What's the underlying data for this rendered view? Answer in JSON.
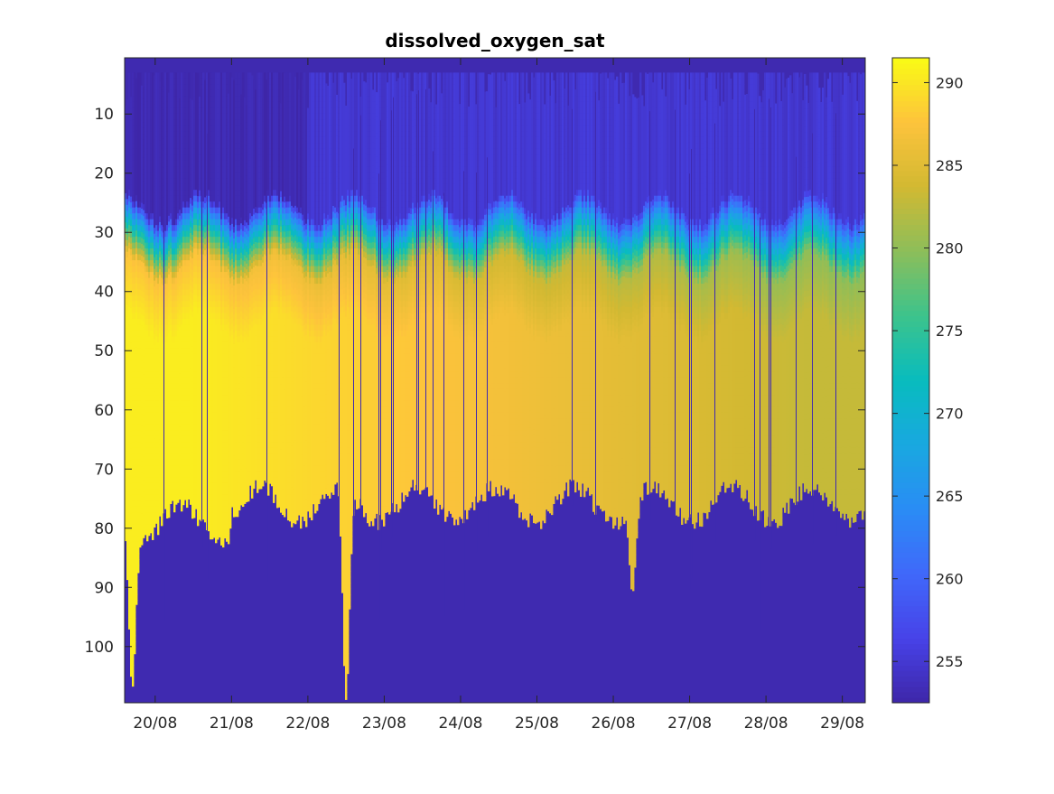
{
  "chart_data": {
    "type": "heatmap",
    "title": "dissolved_oxygen_sat",
    "xlabel": "",
    "ylabel": "",
    "x_ticks": [
      "20/08",
      "21/08",
      "22/08",
      "23/08",
      "24/08",
      "25/08",
      "26/08",
      "27/08",
      "28/08",
      "29/08"
    ],
    "x_tick_days": [
      20,
      21,
      22,
      23,
      24,
      25,
      26,
      27,
      28,
      29
    ],
    "xlim_days": [
      19.6,
      29.3
    ],
    "y_ticks": [
      10,
      20,
      30,
      40,
      50,
      60,
      70,
      80,
      90,
      100
    ],
    "ylim": [
      0.5,
      109.5
    ],
    "y_reversed": true,
    "colorbar": {
      "colormap": "parula",
      "range": [
        252.5,
        291.5
      ],
      "ticks": [
        255,
        260,
        265,
        270,
        275,
        280,
        285,
        290
      ]
    },
    "series_profile": {
      "surface_value": 256,
      "surface_layer_bottom_depth": 26,
      "transition_value": 268,
      "deep_value_early": 290.5,
      "deep_value_late": 283,
      "no_data_fill_value": 253,
      "typical_max_depth": 76,
      "deepest_profiles": [
        {
          "day": 19.7,
          "max_depth": 107
        },
        {
          "day": 22.5,
          "max_depth": 109
        },
        {
          "day": 26.25,
          "max_depth": 91
        }
      ]
    }
  }
}
